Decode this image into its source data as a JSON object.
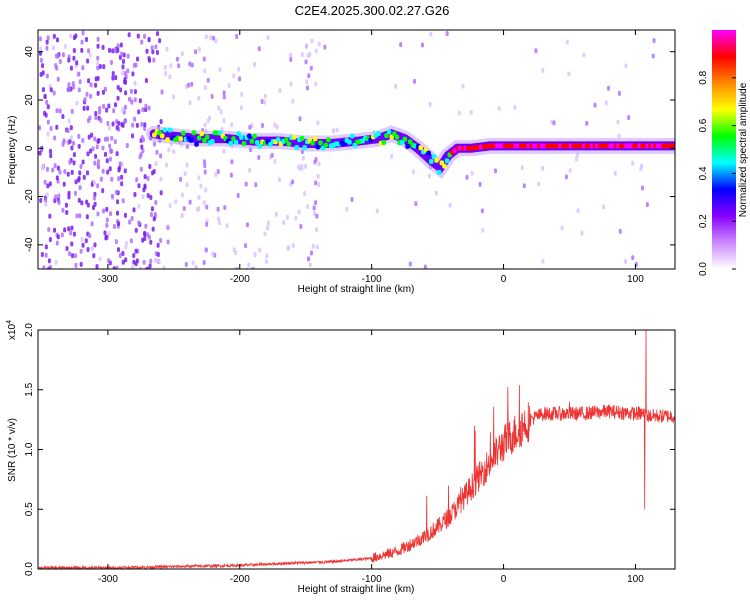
{
  "title": "C2E4.2025.300.02.27.G26",
  "chart_data": [
    {
      "type": "heatmap",
      "xlabel": "Height of straight line (km)",
      "ylabel": "Frequency (Hz)",
      "xlim": [
        -353,
        130
      ],
      "ylim": [
        -50,
        49
      ],
      "xticks": [
        -300,
        -200,
        -100,
        0,
        100
      ],
      "yticks": [
        -40,
        -20,
        0,
        20,
        40
      ],
      "colorbar": {
        "label": "Normalized spectral amplitude",
        "range": [
          0.0,
          1.0
        ],
        "ticks": [
          0.0,
          0.2,
          0.4,
          0.6,
          0.8
        ],
        "colormap": [
          "#ffffff",
          "#cc88ff",
          "#8800ff",
          "#0000ff",
          "#00ffff",
          "#00ff00",
          "#ffff00",
          "#ff8800",
          "#ff0000",
          "#ff00ff"
        ]
      },
      "ridge": {
        "x": [
          -265,
          -250,
          -230,
          -210,
          -190,
          -170,
          -150,
          -130,
          -110,
          -95,
          -85,
          -75,
          -65,
          -55,
          -48,
          -42,
          -35,
          -25,
          -10,
          0,
          20,
          50,
          80,
          100,
          130
        ],
        "y": [
          6,
          5,
          4,
          4,
          3,
          3,
          2,
          2,
          3,
          4,
          6,
          4,
          0,
          -5,
          -8,
          -3,
          0,
          0,
          1,
          1,
          1,
          1,
          1,
          1,
          1
        ],
        "peak_amplitude_x_range": [
          -40,
          130
        ]
      }
    },
    {
      "type": "line",
      "xlabel": "Height of straight line (km)",
      "ylabel": "SNR (10 * v/v)",
      "y_multiplier": "(x10^4)",
      "multiplier_base": "x10",
      "multiplier_exp": "4",
      "xlim": [
        -353,
        130
      ],
      "ylim": [
        0,
        2.0
      ],
      "xticks": [
        -300,
        -200,
        -100,
        0,
        100
      ],
      "yticks": [
        0.0,
        0.5,
        1.0,
        1.5,
        2.0
      ],
      "color": "#ee3333",
      "trend": {
        "x": [
          -353,
          -300,
          -250,
          -200,
          -160,
          -130,
          -100,
          -80,
          -60,
          -50,
          -40,
          -30,
          -20,
          -10,
          0,
          10,
          20,
          30,
          40,
          60,
          80,
          100,
          107,
          110,
          120,
          130
        ],
        "y": [
          0.01,
          0.01,
          0.02,
          0.03,
          0.05,
          0.06,
          0.09,
          0.15,
          0.27,
          0.35,
          0.45,
          0.6,
          0.75,
          0.9,
          1.05,
          1.15,
          1.25,
          1.3,
          1.3,
          1.3,
          1.32,
          1.3,
          1.3,
          1.28,
          1.28,
          1.28
        ]
      },
      "spikes": [
        {
          "x": 108,
          "y": 2.0
        },
        {
          "x": 107,
          "y": 0.5
        },
        {
          "x": -22,
          "y": 1.2
        },
        {
          "x": 50,
          "y": 1.4
        }
      ]
    }
  ]
}
